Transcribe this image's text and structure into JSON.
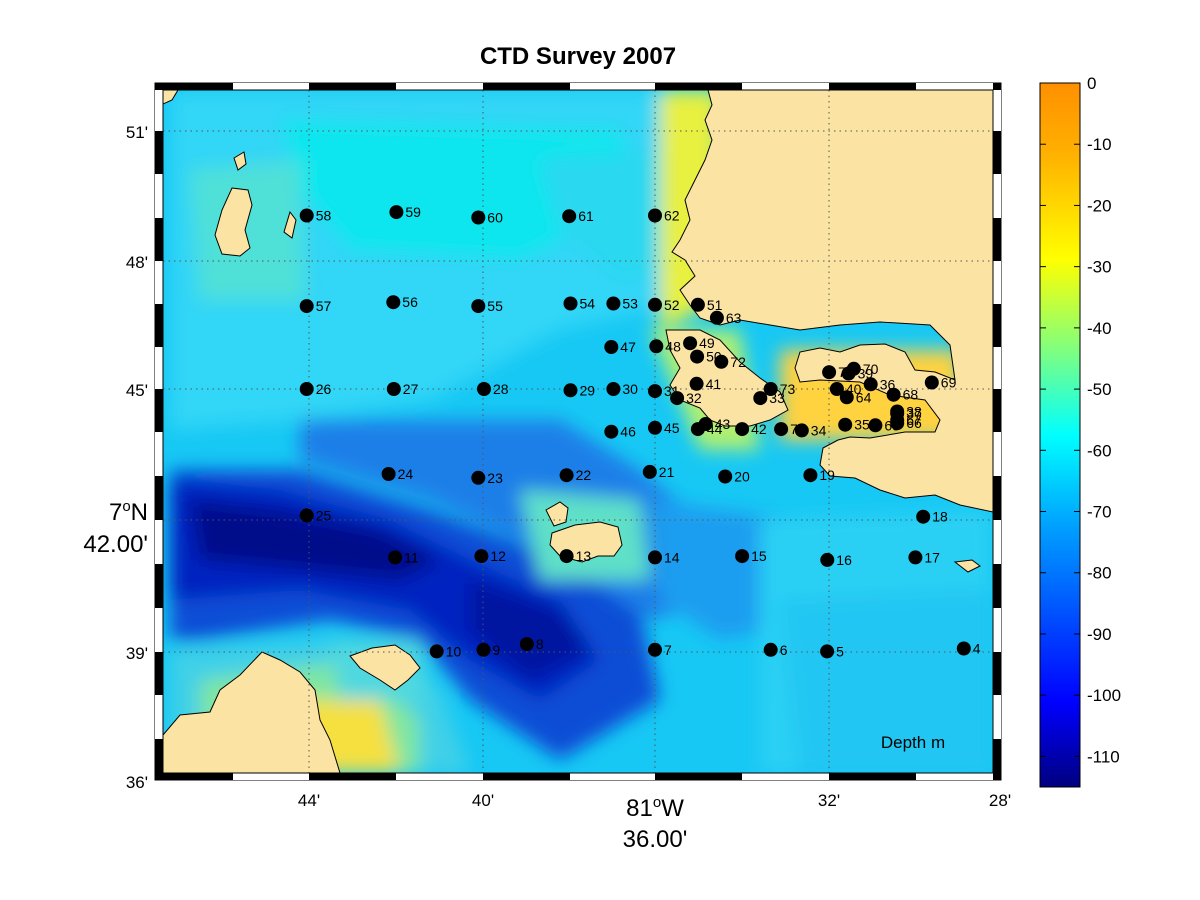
{
  "title": "CTD Survey 2007",
  "map": {
    "x_ticks": [
      "44'",
      "40'",
      "32'",
      "28'"
    ],
    "x_center_deg": "81",
    "x_center_unit": "o",
    "x_center_hemi": "W",
    "x_center_min": "36.00'",
    "y_ticks": [
      "51'",
      "48'",
      "45'",
      "39'",
      "36'"
    ],
    "y_center_deg": "7",
    "y_center_unit": "o",
    "y_center_hemi": "N",
    "y_center_min": "42.00'",
    "annotation": "Depth m",
    "land_color": "#fbe3a4",
    "stations": [
      {
        "id": "4",
        "lon": -81.4812,
        "lat": 7.6498
      },
      {
        "id": "5",
        "lon": -81.5338,
        "lat": 7.6487
      },
      {
        "id": "6",
        "lon": -81.5555,
        "lat": 7.6493
      },
      {
        "id": "7",
        "lon": -81.6,
        "lat": 7.6493
      },
      {
        "id": "8",
        "lon": -81.6493,
        "lat": 7.6515
      },
      {
        "id": "9",
        "lon": -81.666,
        "lat": 7.6493
      },
      {
        "id": "10",
        "lon": -81.684,
        "lat": 7.6487
      },
      {
        "id": "11",
        "lon": -81.7,
        "lat": 7.685
      },
      {
        "id": "12",
        "lon": -81.6668,
        "lat": 7.6855
      },
      {
        "id": "13",
        "lon": -81.634,
        "lat": 7.6855
      },
      {
        "id": "14",
        "lon": -81.6,
        "lat": 7.685
      },
      {
        "id": "15",
        "lon": -81.5665,
        "lat": 7.6855
      },
      {
        "id": "16",
        "lon": -81.5337,
        "lat": 7.684
      },
      {
        "id": "17",
        "lon": -81.4998,
        "lat": 7.685
      },
      {
        "id": "18",
        "lon": -81.4968,
        "lat": 7.7007
      },
      {
        "id": "19",
        "lon": -81.5402,
        "lat": 7.7167
      },
      {
        "id": "20",
        "lon": -81.573,
        "lat": 7.7162
      },
      {
        "id": "21",
        "lon": -81.602,
        "lat": 7.718
      },
      {
        "id": "22",
        "lon": -81.634,
        "lat": 7.7167
      },
      {
        "id": "23",
        "lon": -81.668,
        "lat": 7.7157
      },
      {
        "id": "24",
        "lon": -81.7025,
        "lat": 7.7172
      },
      {
        "id": "25",
        "lon": -81.734,
        "lat": 7.7012
      },
      {
        "id": "26",
        "lon": -81.734,
        "lat": 7.75
      },
      {
        "id": "27",
        "lon": -81.7005,
        "lat": 7.75
      },
      {
        "id": "28",
        "lon": -81.6658,
        "lat": 7.75
      },
      {
        "id": "29",
        "lon": -81.6325,
        "lat": 7.7495
      },
      {
        "id": "30",
        "lon": -81.616,
        "lat": 7.75
      },
      {
        "id": "31",
        "lon": -81.6,
        "lat": 7.7492
      },
      {
        "id": "32",
        "lon": -81.5915,
        "lat": 7.7465
      },
      {
        "id": "33",
        "lon": -81.5595,
        "lat": 7.7465
      },
      {
        "id": "34",
        "lon": -81.5435,
        "lat": 7.734
      },
      {
        "id": "35",
        "lon": -81.5268,
        "lat": 7.7362
      },
      {
        "id": "36",
        "lon": -81.517,
        "lat": 7.7518
      },
      {
        "id": "37",
        "lon": -81.5068,
        "lat": 7.7405
      },
      {
        "id": "38",
        "lon": -81.5068,
        "lat": 7.7413
      },
      {
        "id": "39",
        "lon": -81.5255,
        "lat": 7.756
      },
      {
        "id": "40",
        "lon": -81.53,
        "lat": 7.75
      },
      {
        "id": "41",
        "lon": -81.584,
        "lat": 7.752
      },
      {
        "id": "42",
        "lon": -81.5665,
        "lat": 7.7345
      },
      {
        "id": "43",
        "lon": -81.5805,
        "lat": 7.7365
      },
      {
        "id": "44",
        "lon": -81.5835,
        "lat": 7.7345
      },
      {
        "id": "45",
        "lon": -81.6,
        "lat": 7.735
      },
      {
        "id": "46",
        "lon": -81.6168,
        "lat": 7.7335
      },
      {
        "id": "47",
        "lon": -81.6168,
        "lat": 7.7662
      },
      {
        "id": "48",
        "lon": -81.5995,
        "lat": 7.7665
      },
      {
        "id": "49",
        "lon": -81.5865,
        "lat": 7.7677
      },
      {
        "id": "50",
        "lon": -81.5838,
        "lat": 7.7625
      },
      {
        "id": "51",
        "lon": -81.5835,
        "lat": 7.7825
      },
      {
        "id": "52",
        "lon": -81.6,
        "lat": 7.7825
      },
      {
        "id": "53",
        "lon": -81.616,
        "lat": 7.783
      },
      {
        "id": "54",
        "lon": -81.6325,
        "lat": 7.783
      },
      {
        "id": "55",
        "lon": -81.668,
        "lat": 7.782
      },
      {
        "id": "56",
        "lon": -81.7007,
        "lat": 7.7835
      },
      {
        "id": "57",
        "lon": -81.734,
        "lat": 7.782
      },
      {
        "id": "58",
        "lon": -81.734,
        "lat": 7.817
      },
      {
        "id": "59",
        "lon": -81.6995,
        "lat": 7.8183
      },
      {
        "id": "60",
        "lon": -81.668,
        "lat": 7.8162
      },
      {
        "id": "61",
        "lon": -81.633,
        "lat": 7.8167
      },
      {
        "id": "62",
        "lon": -81.6,
        "lat": 7.817
      },
      {
        "id": "63",
        "lon": -81.5762,
        "lat": 7.7775
      },
      {
        "id": "64",
        "lon": -81.5262,
        "lat": 7.7468
      },
      {
        "id": "65",
        "lon": -81.5152,
        "lat": 7.736
      },
      {
        "id": "66",
        "lon": -81.5068,
        "lat": 7.7368
      },
      {
        "id": "67",
        "lon": -81.5068,
        "lat": 7.738
      },
      {
        "id": "68",
        "lon": -81.5082,
        "lat": 7.7478
      },
      {
        "id": "69",
        "lon": -81.4935,
        "lat": 7.7525
      },
      {
        "id": "70",
        "lon": -81.5235,
        "lat": 7.7578
      },
      {
        "id": "71",
        "lon": -81.533,
        "lat": 7.7565
      },
      {
        "id": "72",
        "lon": -81.5745,
        "lat": 7.7605
      },
      {
        "id": "73",
        "lon": -81.5555,
        "lat": 7.75
      },
      {
        "id": "74",
        "lon": -81.5515,
        "lat": 7.7345
      }
    ]
  },
  "colorbar": {
    "ticks": [
      "0",
      "-10",
      "-20",
      "-30",
      "-40",
      "-50",
      "-60",
      "-70",
      "-80",
      "-90",
      "-100",
      "-110"
    ],
    "range": [
      -115,
      0
    ],
    "label": ""
  }
}
